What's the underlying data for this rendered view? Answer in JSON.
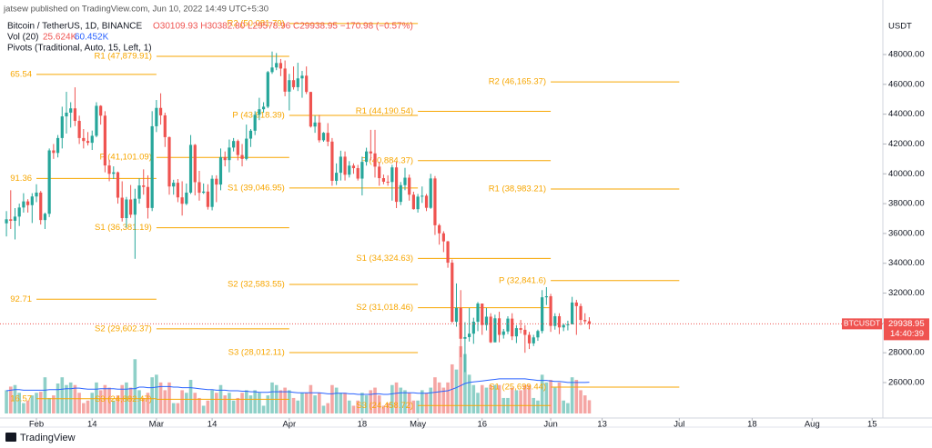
{
  "header": {
    "publisher": "jatsew published on TradingView.com, Jun 10, 2022 14:49 UTC+5:30",
    "footer_brand": "TradingView"
  },
  "chart_data": {
    "type": "candlestick",
    "title": "Bitcoin / TetherUS, 1D, BINANCE",
    "ohlc_text": "O30109.93 H30382.80 L29578.96 C29938.95 −170.98 (−0.57%)",
    "volume_legend": {
      "name": "Vol (20)",
      "value": "25.624K",
      "ma": "60.452K"
    },
    "pivots_legend": "Pivots (Traditional, Auto, 15, Left, 1)",
    "y_axis_unit": "USDT",
    "symbol": "BTCUSDT",
    "countdown": "14:40:39",
    "up_color": "#26a69a",
    "down_color": "#ef5350",
    "volume_up_color": "#8fd0c8",
    "volume_down_color": "#f5a6a4",
    "ma_color": "#2962ff",
    "pivot_color": "#f7a600",
    "xlim": [
      23.5,
      229.5
    ],
    "ylim": [
      23624,
      51656
    ],
    "vol_ylim": [
      0,
      800
    ],
    "xticks": [
      {
        "value": 32,
        "label": "Feb"
      },
      {
        "value": 45,
        "label": "14"
      },
      {
        "value": 60,
        "label": "Mar"
      },
      {
        "value": 73,
        "label": "14"
      },
      {
        "value": 91,
        "label": "Apr"
      },
      {
        "value": 108,
        "label": "18"
      },
      {
        "value": 121,
        "label": "May"
      },
      {
        "value": 136,
        "label": "16"
      },
      {
        "value": 152,
        "label": "Jun"
      },
      {
        "value": 164,
        "label": "13"
      },
      {
        "value": 182,
        "label": "Jul"
      },
      {
        "value": 199,
        "label": "18"
      },
      {
        "value": 213,
        "label": "Aug"
      },
      {
        "value": 227,
        "label": "15"
      }
    ],
    "yticks": [
      {
        "value": 26000,
        "label": "26000.00"
      },
      {
        "value": 28000,
        "label": "28000.00"
      },
      {
        "value": 30000,
        "label": "30000.00"
      },
      {
        "value": 32000,
        "label": "32000.00"
      },
      {
        "value": 34000,
        "label": "34000.00"
      },
      {
        "value": 36000,
        "label": "36000.00"
      },
      {
        "value": 38000,
        "label": "38000.00"
      },
      {
        "value": 40000,
        "label": "40000.00"
      },
      {
        "value": 42000,
        "label": "42000.00"
      },
      {
        "value": 44000,
        "label": "44000.00"
      },
      {
        "value": 46000,
        "label": "46000.00"
      },
      {
        "value": 48000,
        "label": "48000.00"
      }
    ],
    "x": [
      25,
      26,
      27,
      28,
      29,
      30,
      31,
      32,
      33,
      34,
      35,
      36,
      37,
      38,
      39,
      40,
      41,
      42,
      43,
      44,
      45,
      46,
      47,
      48,
      49,
      50,
      51,
      52,
      53,
      54,
      55,
      56,
      57,
      58,
      59,
      60,
      61,
      62,
      63,
      64,
      65,
      66,
      67,
      68,
      69,
      70,
      71,
      72,
      73,
      74,
      75,
      76,
      77,
      78,
      79,
      80,
      81,
      82,
      83,
      84,
      85,
      86,
      87,
      88,
      89,
      90,
      91,
      92,
      93,
      94,
      95,
      96,
      97,
      98,
      99,
      100,
      101,
      102,
      103,
      104,
      105,
      106,
      107,
      108,
      109,
      110,
      111,
      112,
      113,
      114,
      115,
      116,
      117,
      118,
      119,
      120,
      121,
      122,
      123,
      124,
      125,
      126,
      127,
      128,
      129,
      130,
      131,
      132,
      133,
      134,
      135,
      136,
      137,
      138,
      139,
      140,
      141,
      142,
      143,
      144,
      145,
      146,
      147,
      148,
      149,
      150,
      151,
      152,
      153,
      154,
      155,
      156,
      157,
      158,
      159,
      160,
      161
    ],
    "open": [
      36680,
      36950,
      36850,
      37130,
      37740,
      38150,
      37900,
      38480,
      38740,
      36900,
      37320,
      41570,
      41400,
      42400,
      43850,
      44100,
      44390,
      43550,
      42400,
      42200,
      42080,
      42550,
      44560,
      43900,
      40560,
      40000,
      40100,
      38400,
      37030,
      38280,
      37260,
      38330,
      39220,
      39120,
      37710,
      43190,
      44420,
      43920,
      42460,
      39150,
      39400,
      38420,
      37990,
      38740,
      41940,
      39440,
      38730,
      38810,
      37780,
      39670,
      39280,
      41120,
      40920,
      41760,
      42200,
      41260,
      41000,
      42360,
      42890,
      43960,
      44330,
      44500,
      46820,
      47130,
      47430,
      47060,
      45510,
      46280,
      45810,
      46400,
      46580,
      45490,
      43170,
      43440,
      42250,
      42750,
      42160,
      39530,
      40070,
      41150,
      39940,
      40550,
      40380,
      39680,
      40800,
      41500,
      41370,
      40480,
      39710,
      39470,
      39450,
      40430,
      38120,
      39240,
      39740,
      38600,
      37630,
      38470,
      38530,
      37720,
      39690,
      36550,
      36010,
      35470,
      34040,
      30080,
      31010,
      28940,
      29050,
      29280,
      30080,
      31300,
      29860,
      30420,
      28700,
      30310,
      29200,
      29430,
      30290,
      29100,
      29650,
      29540,
      29200,
      28630,
      29030,
      29460,
      31720,
      31790,
      29800,
      30450,
      29700,
      29860,
      29910,
      31370,
      31130,
      30200,
      30109.93
    ],
    "high": [
      37500,
      38900,
      37700,
      38000,
      38700,
      38300,
      38700,
      39300,
      38850,
      37400,
      41700,
      42000,
      42600,
      44500,
      45500,
      44800,
      45800,
      43900,
      43000,
      42800,
      42900,
      44800,
      44600,
      44200,
      40950,
      40500,
      40150,
      39500,
      38450,
      39250,
      39000,
      39700,
      40300,
      39900,
      44200,
      44950,
      45400,
      44100,
      42500,
      39600,
      39650,
      39500,
      39350,
      42600,
      42000,
      40200,
      39350,
      39300,
      39900,
      39900,
      41700,
      41500,
      42300,
      42400,
      42300,
      42000,
      43300,
      43000,
      44200,
      45100,
      44800,
      46900,
      48200,
      48100,
      47700,
      47600,
      46700,
      47200,
      47450,
      46900,
      47200,
      45500,
      43900,
      43950,
      42800,
      43400,
      42400,
      40700,
      41550,
      41500,
      40850,
      40700,
      40600,
      41150,
      41750,
      42950,
      42950,
      40800,
      39950,
      39900,
      40600,
      40800,
      39450,
      40400,
      39950,
      38800,
      38650,
      39150,
      38650,
      40000,
      39850,
      36650,
      36150,
      35500,
      34250,
      32650,
      32200,
      30050,
      31000,
      30350,
      31400,
      31300,
      31000,
      30650,
      30550,
      30750,
      29600,
      30450,
      30650,
      29850,
      30200,
      29850,
      29400,
      29200,
      29550,
      32200,
      32400,
      31950,
      30650,
      30650,
      29950,
      30150,
      31750,
      31550,
      31300,
      30650,
      30382.8
    ],
    "low": [
      35800,
      36300,
      35600,
      36500,
      37400,
      37400,
      36700,
      38100,
      36600,
      36300,
      37100,
      41000,
      41100,
      41700,
      42700,
      43100,
      43200,
      42000,
      41700,
      41900,
      41600,
      42450,
      43300,
      40100,
      39500,
      39650,
      38000,
      36800,
      36400,
      37050,
      34300,
      38000,
      38600,
      37000,
      37500,
      42800,
      43300,
      41800,
      38600,
      38600,
      38100,
      37200,
      37900,
      38650,
      38550,
      38200,
      38650,
      37600,
      37550,
      38100,
      38900,
      40500,
      40100,
      41500,
      40900,
      40500,
      40900,
      41800,
      42600,
      43600,
      44100,
      44400,
      46700,
      46950,
      46550,
      45200,
      44250,
      45650,
      45550,
      45100,
      45350,
      43100,
      42750,
      42100,
      42150,
      41850,
      39200,
      39250,
      39550,
      39550,
      39750,
      40000,
      39550,
      38550,
      40550,
      40900,
      39750,
      39200,
      39300,
      39200,
      38200,
      37700,
      37900,
      38900,
      38200,
      37600,
      37400,
      38050,
      37500,
      37650,
      35900,
      35250,
      34750,
      33700,
      30000,
      29750,
      27700,
      26700,
      28750,
      28600,
      29450,
      29200,
      29500,
      28650,
      28700,
      28700,
      28950,
      29250,
      28850,
      28650,
      29300,
      28000,
      28250,
      28450,
      28800,
      29300,
      31200,
      29400,
      29550,
      29250,
      29450,
      29500,
      29900,
      29200,
      29850,
      29950,
      29578.96
    ],
    "close": [
      36950,
      36850,
      37130,
      37740,
      38150,
      37900,
      38480,
      38740,
      36900,
      37320,
      41570,
      41400,
      42400,
      43850,
      44100,
      44390,
      43550,
      42400,
      42200,
      42080,
      42550,
      44560,
      43900,
      40560,
      40000,
      40100,
      38400,
      37030,
      38280,
      37260,
      38330,
      39220,
      39120,
      37710,
      43190,
      44420,
      43920,
      42460,
      39150,
      39400,
      38420,
      37990,
      38740,
      41940,
      39440,
      38730,
      38810,
      37780,
      39670,
      39280,
      41120,
      40920,
      41760,
      42200,
      41260,
      41000,
      42360,
      42890,
      43960,
      44330,
      44500,
      46820,
      47130,
      47430,
      47060,
      45510,
      46280,
      45810,
      46400,
      46580,
      45490,
      43170,
      43440,
      42250,
      42750,
      42160,
      39530,
      40070,
      41150,
      39940,
      40550,
      40380,
      39680,
      40800,
      41500,
      41370,
      40480,
      39710,
      39470,
      39450,
      40430,
      38120,
      39240,
      39740,
      38600,
      37630,
      38470,
      38530,
      37720,
      39690,
      36550,
      36010,
      35470,
      34040,
      30080,
      31010,
      28940,
      29050,
      29280,
      30080,
      31300,
      29860,
      30420,
      28700,
      30310,
      29200,
      29430,
      30290,
      29100,
      29650,
      29540,
      29200,
      28630,
      29030,
      29460,
      31720,
      31790,
      29800,
      30450,
      29700,
      29860,
      29910,
      31370,
      31130,
      30200,
      30110,
      29938.95
    ],
    "volume": [
      45,
      52,
      55,
      40,
      20,
      25,
      35,
      40,
      42,
      70,
      30,
      35,
      58,
      70,
      55,
      60,
      55,
      40,
      20,
      25,
      40,
      60,
      45,
      55,
      50,
      25,
      35,
      55,
      60,
      50,
      105,
      45,
      30,
      40,
      70,
      75,
      60,
      45,
      60,
      20,
      20,
      45,
      40,
      65,
      40,
      30,
      15,
      25,
      45,
      40,
      55,
      35,
      40,
      25,
      30,
      40,
      45,
      35,
      45,
      40,
      15,
      35,
      60,
      55,
      45,
      50,
      45,
      30,
      25,
      40,
      40,
      55,
      35,
      40,
      15,
      20,
      55,
      50,
      40,
      40,
      25,
      15,
      25,
      40,
      35,
      45,
      50,
      35,
      15,
      20,
      55,
      60,
      50,
      45,
      40,
      25,
      25,
      45,
      40,
      50,
      70,
      60,
      50,
      60,
      95,
      85,
      130,
      115,
      75,
      55,
      40,
      55,
      50,
      55,
      55,
      55,
      30,
      30,
      50,
      45,
      45,
      55,
      55,
      30,
      25,
      75,
      60,
      65,
      50,
      60,
      25,
      20,
      70,
      65,
      45,
      35,
      25.624
    ],
    "volume_ma": [
      44,
      45,
      46,
      46,
      45,
      45,
      45,
      45,
      45,
      45,
      46,
      46,
      46,
      47,
      48,
      48,
      49,
      49,
      48,
      47,
      47,
      47,
      48,
      48,
      48,
      48,
      47,
      47,
      47,
      48,
      48,
      51,
      51,
      50,
      50,
      51,
      52,
      52,
      52,
      51,
      51,
      50,
      50,
      50,
      49,
      48,
      47,
      46,
      46,
      45,
      45,
      45,
      44,
      44,
      44,
      43,
      43,
      42,
      42,
      41,
      41,
      41,
      42,
      42,
      42,
      42,
      42,
      41,
      40,
      40,
      40,
      40,
      40,
      40,
      39,
      38,
      38,
      39,
      39,
      39,
      38,
      38,
      37,
      37,
      37,
      37,
      38,
      38,
      37,
      37,
      38,
      39,
      40,
      40,
      40,
      40,
      39,
      39,
      39,
      40,
      41,
      42,
      43,
      44,
      47,
      50,
      54,
      58,
      60,
      61,
      62,
      63,
      64,
      65,
      66,
      67,
      67,
      67,
      67,
      67,
      67,
      67,
      66,
      65,
      64,
      64,
      64,
      63,
      62,
      62,
      61,
      60,
      60,
      60,
      60,
      60,
      60.452
    ],
    "pivots": [
      {
        "label": "65.54",
        "value": 46665.54,
        "start": 32,
        "end": 60
      },
      {
        "label": "91.36",
        "value": 39691.36,
        "start": 32,
        "end": 60
      },
      {
        "label": "92.71",
        "value": 31592.71,
        "start": 32,
        "end": 60
      },
      {
        "label": "16.57",
        "value": 24916.57,
        "start": 32,
        "end": 60
      },
      {
        "label": "R1 (47,879.91)",
        "value": 47879.91,
        "start": 60,
        "end": 91
      },
      {
        "label": "P (41,101.09)",
        "value": 41101.09,
        "start": 60,
        "end": 91
      },
      {
        "label": "S1 (36,381.19)",
        "value": 36381.19,
        "start": 60,
        "end": 91
      },
      {
        "label": "S2 (29,602.37)",
        "value": 29602.37,
        "start": 60,
        "end": 91
      },
      {
        "label": "S3 (24,882.47)",
        "value": 24882.47,
        "start": 60,
        "end": 91
      },
      {
        "label": "R2 (50,081.79)",
        "value": 50081.79,
        "start": 91,
        "end": 121
      },
      {
        "label": "P (43,918.39)",
        "value": 43918.39,
        "start": 91,
        "end": 121
      },
      {
        "label": "S1 (39,046.95)",
        "value": 39046.95,
        "start": 91,
        "end": 121
      },
      {
        "label": "S2 (32,583.55)",
        "value": 32583.55,
        "start": 91,
        "end": 121
      },
      {
        "label": "S3 (28,012.11)",
        "value": 28012.11,
        "start": 91,
        "end": 121
      },
      {
        "label": "R1 (44,190.54)",
        "value": 44190.54,
        "start": 121,
        "end": 152
      },
      {
        "label": "P (40,884.37)",
        "value": 40884.37,
        "start": 121,
        "end": 152
      },
      {
        "label": "S1 (34,324.63)",
        "value": 34324.63,
        "start": 121,
        "end": 152
      },
      {
        "label": "S2 (31,018.46)",
        "value": 31018.46,
        "start": 121,
        "end": 152
      },
      {
        "label": "S3 (24,458.72)",
        "value": 24458.72,
        "start": 121,
        "end": 152
      },
      {
        "label": "R2 (46,165.37)",
        "value": 46165.37,
        "start": 152,
        "end": 182
      },
      {
        "label": "R1 (38,983.21)",
        "value": 38983.21,
        "start": 152,
        "end": 182
      },
      {
        "label": "P (32,841.6)",
        "value": 32841.6,
        "start": 152,
        "end": 182
      },
      {
        "label": "S1 (25,699.44)",
        "value": 25699.44,
        "start": 152,
        "end": 182
      }
    ]
  }
}
